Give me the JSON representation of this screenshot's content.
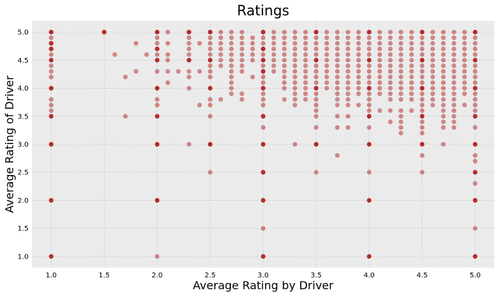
{
  "chart_data": {
    "type": "scatter",
    "title": "Ratings",
    "xlabel": "Average Rating by Driver",
    "ylabel": "Average Rating of Driver",
    "xlim": [
      0.82,
      5.18
    ],
    "ylim": [
      0.8,
      5.2
    ],
    "xticks": [
      "1.0",
      "1.5",
      "2.0",
      "2.5",
      "3.0",
      "3.5",
      "4.0",
      "4.5",
      "5.0"
    ],
    "yticks": [
      "1.0",
      "1.5",
      "2.0",
      "2.5",
      "3.0",
      "3.5",
      "4.0",
      "4.5",
      "5.0"
    ],
    "grid": true,
    "style": "ggplot-like gray background",
    "colors": {
      "point": "#b22222",
      "background": "#ebebeb",
      "grid": "#c8c8c8"
    },
    "columns": [
      {
        "x": 1.0,
        "y": [
          1.0,
          2.0,
          3.0,
          3.5,
          3.6,
          3.7,
          3.8,
          4.0,
          4.2,
          4.3,
          4.4,
          4.5,
          4.6,
          4.7,
          4.8,
          4.9,
          5.0
        ]
      },
      {
        "x": 1.5,
        "y": [
          5.0
        ]
      },
      {
        "x": 1.6,
        "y": [
          4.6
        ]
      },
      {
        "x": 1.7,
        "y": [
          3.5,
          4.2
        ]
      },
      {
        "x": 1.8,
        "y": [
          4.3,
          4.8
        ]
      },
      {
        "x": 1.9,
        "y": [
          4.6
        ]
      },
      {
        "x": 2.0,
        "y": [
          1.0,
          2.0,
          3.0,
          3.5,
          3.7,
          3.8,
          4.0,
          4.3,
          4.5,
          4.6,
          4.7,
          4.8,
          4.9,
          5.0
        ]
      },
      {
        "x": 2.1,
        "y": [
          4.1,
          4.3,
          4.5,
          4.6,
          4.8,
          5.0
        ]
      },
      {
        "x": 2.2,
        "y": [
          4.3
        ]
      },
      {
        "x": 2.3,
        "y": [
          3.0,
          4.0,
          4.2,
          4.3,
          4.5,
          4.6,
          4.7,
          4.8,
          4.9,
          5.0
        ]
      },
      {
        "x": 2.4,
        "y": [
          3.7,
          4.3,
          4.8
        ]
      },
      {
        "x": 2.5,
        "y": [
          2.5,
          3.0,
          3.5,
          3.7,
          3.8,
          4.0,
          4.2,
          4.3,
          4.4,
          4.5,
          4.6,
          4.7,
          4.8,
          4.9,
          5.0
        ]
      },
      {
        "x": 2.6,
        "y": [
          3.8,
          4.4,
          4.5,
          4.6,
          4.7,
          4.8,
          4.9,
          5.0
        ]
      },
      {
        "x": 2.7,
        "y": [
          3.9,
          4.0,
          4.1,
          4.2,
          4.3,
          4.4,
          4.5,
          4.6,
          4.7,
          4.8,
          4.9,
          5.0
        ]
      },
      {
        "x": 2.8,
        "y": [
          3.8,
          3.9,
          4.3,
          4.4,
          4.5,
          4.6,
          4.7,
          4.8,
          4.9,
          5.0
        ]
      },
      {
        "x": 2.9,
        "y": [
          4.2,
          4.5,
          4.6,
          4.7,
          4.8,
          4.9
        ]
      },
      {
        "x": 3.0,
        "y": [
          1.0,
          1.5,
          2.0,
          2.5,
          3.0,
          3.3,
          3.5,
          3.7,
          3.8,
          3.9,
          4.0,
          4.1,
          4.2,
          4.3,
          4.4,
          4.5,
          4.6,
          4.7,
          4.8,
          4.9,
          5.0
        ]
      },
      {
        "x": 3.1,
        "y": [
          4.3,
          4.4,
          4.5,
          4.6,
          4.7,
          4.8,
          4.9,
          5.0
        ]
      },
      {
        "x": 3.2,
        "y": [
          3.8,
          4.0,
          4.1,
          4.2,
          4.3,
          4.4,
          4.5,
          4.6,
          4.7,
          4.8,
          4.9,
          5.0
        ]
      },
      {
        "x": 3.3,
        "y": [
          3.0,
          3.7,
          3.8,
          3.9,
          4.0,
          4.1,
          4.2,
          4.3,
          4.4,
          4.5,
          4.6,
          4.7,
          4.8,
          4.9,
          5.0
        ]
      },
      {
        "x": 3.4,
        "y": [
          3.8,
          3.9,
          4.0,
          4.1,
          4.2,
          4.3,
          4.4,
          4.5,
          4.6,
          4.7,
          4.8,
          4.9,
          5.0
        ]
      },
      {
        "x": 3.5,
        "y": [
          2.5,
          3.0,
          3.3,
          3.5,
          3.6,
          3.7,
          3.8,
          3.9,
          4.0,
          4.1,
          4.2,
          4.3,
          4.4,
          4.5,
          4.6,
          4.7,
          4.8,
          4.9,
          5.0
        ]
      },
      {
        "x": 3.6,
        "y": [
          4.0,
          4.1,
          4.2,
          4.3,
          4.4,
          4.5,
          4.6,
          4.7,
          4.8,
          4.9,
          5.0
        ]
      },
      {
        "x": 3.7,
        "y": [
          2.8,
          3.3,
          3.5,
          3.7,
          3.8,
          3.9,
          4.0,
          4.1,
          4.2,
          4.3,
          4.4,
          4.5,
          4.6,
          4.7,
          4.8,
          4.9,
          5.0
        ]
      },
      {
        "x": 3.8,
        "y": [
          3.3,
          3.5,
          3.7,
          3.8,
          3.9,
          4.0,
          4.1,
          4.2,
          4.3,
          4.4,
          4.5,
          4.6,
          4.7,
          4.8,
          4.9,
          5.0
        ]
      },
      {
        "x": 3.9,
        "y": [
          3.7,
          3.9,
          4.0,
          4.1,
          4.2,
          4.3,
          4.4,
          4.5,
          4.6,
          4.7,
          4.8,
          4.9,
          5.0
        ]
      },
      {
        "x": 4.0,
        "y": [
          1.0,
          2.0,
          2.5,
          3.0,
          3.3,
          3.5,
          3.6,
          3.7,
          3.8,
          3.9,
          4.0,
          4.1,
          4.2,
          4.3,
          4.4,
          4.5,
          4.6,
          4.7,
          4.8,
          4.9,
          5.0
        ]
      },
      {
        "x": 4.1,
        "y": [
          3.6,
          3.9,
          4.0,
          4.1,
          4.2,
          4.3,
          4.4,
          4.5,
          4.6,
          4.7,
          4.8,
          4.9,
          5.0
        ]
      },
      {
        "x": 4.2,
        "y": [
          3.4,
          3.6,
          3.8,
          3.9,
          4.0,
          4.1,
          4.2,
          4.3,
          4.4,
          4.5,
          4.6,
          4.7,
          4.8,
          4.9,
          5.0
        ]
      },
      {
        "x": 4.3,
        "y": [
          3.2,
          3.3,
          3.4,
          3.5,
          3.6,
          3.8,
          3.9,
          4.0,
          4.1,
          4.2,
          4.3,
          4.4,
          4.5,
          4.6,
          4.7,
          4.8,
          4.9,
          5.0
        ]
      },
      {
        "x": 4.4,
        "y": [
          3.6,
          3.8,
          3.9,
          4.0,
          4.1,
          4.2,
          4.3,
          4.4,
          4.5,
          4.6,
          4.7,
          4.8,
          4.9,
          5.0
        ]
      },
      {
        "x": 4.5,
        "y": [
          2.5,
          2.8,
          3.0,
          3.2,
          3.3,
          3.4,
          3.5,
          3.6,
          3.7,
          3.8,
          3.9,
          4.0,
          4.1,
          4.2,
          4.3,
          4.4,
          4.5,
          4.6,
          4.7,
          4.8,
          4.9,
          5.0
        ]
      },
      {
        "x": 4.6,
        "y": [
          3.7,
          3.8,
          3.9,
          4.0,
          4.1,
          4.2,
          4.3,
          4.4,
          4.5,
          4.6,
          4.7,
          4.8,
          4.9,
          5.0
        ]
      },
      {
        "x": 4.7,
        "y": [
          3.0,
          3.3,
          3.4,
          3.5,
          3.6,
          3.7,
          3.8,
          3.9,
          4.0,
          4.1,
          4.2,
          4.3,
          4.4,
          4.5,
          4.6,
          4.7,
          4.8,
          4.9,
          5.0
        ]
      },
      {
        "x": 4.8,
        "y": [
          3.3,
          3.4,
          3.5,
          3.6,
          3.7,
          3.8,
          3.9,
          4.0,
          4.1,
          4.2,
          4.3,
          4.4,
          4.5,
          4.6,
          4.7,
          4.8,
          4.9,
          5.0
        ]
      },
      {
        "x": 4.9,
        "y": [
          3.7,
          3.9,
          4.0,
          4.1,
          4.2,
          4.3,
          4.4,
          4.5,
          4.6,
          4.7,
          4.8,
          4.9,
          5.0
        ]
      },
      {
        "x": 5.0,
        "y": [
          1.0,
          1.5,
          2.0,
          2.3,
          2.5,
          2.7,
          2.8,
          3.0,
          3.3,
          3.5,
          3.6,
          3.7,
          3.8,
          3.9,
          4.0,
          4.1,
          4.2,
          4.3,
          4.4,
          4.5,
          4.6,
          4.7,
          4.8,
          4.9,
          5.0
        ]
      }
    ],
    "strong_points": [
      [
        1.0,
        1.0
      ],
      [
        1.0,
        2.0
      ],
      [
        1.0,
        3.0
      ],
      [
        1.0,
        3.5
      ],
      [
        1.0,
        4.0
      ],
      [
        1.0,
        4.5
      ],
      [
        1.0,
        4.7
      ],
      [
        1.0,
        4.8
      ],
      [
        1.0,
        5.0
      ],
      [
        1.5,
        5.0
      ],
      [
        2.0,
        2.0
      ],
      [
        2.0,
        3.0
      ],
      [
        2.0,
        3.5
      ],
      [
        2.0,
        4.0
      ],
      [
        2.0,
        4.5
      ],
      [
        2.0,
        4.7
      ],
      [
        2.0,
        5.0
      ],
      [
        2.3,
        4.5
      ],
      [
        2.3,
        5.0
      ],
      [
        2.5,
        3.0
      ],
      [
        2.5,
        4.0
      ],
      [
        2.5,
        4.5
      ],
      [
        2.5,
        5.0
      ],
      [
        3.0,
        1.0
      ],
      [
        3.0,
        2.0
      ],
      [
        3.0,
        2.5
      ],
      [
        3.0,
        3.0
      ],
      [
        3.0,
        3.5
      ],
      [
        3.0,
        4.0
      ],
      [
        3.0,
        4.3
      ],
      [
        3.0,
        4.5
      ],
      [
        3.0,
        4.7
      ],
      [
        3.0,
        5.0
      ],
      [
        3.5,
        3.0
      ],
      [
        3.5,
        4.0
      ],
      [
        3.5,
        4.5
      ],
      [
        3.5,
        5.0
      ],
      [
        4.0,
        1.0
      ],
      [
        4.0,
        2.0
      ],
      [
        4.0,
        3.0
      ],
      [
        4.0,
        3.5
      ],
      [
        4.0,
        4.0
      ],
      [
        4.0,
        4.5
      ],
      [
        4.0,
        5.0
      ],
      [
        4.5,
        3.0
      ],
      [
        4.5,
        3.5
      ],
      [
        4.5,
        4.0
      ],
      [
        4.5,
        4.5
      ],
      [
        4.5,
        5.0
      ],
      [
        5.0,
        1.0
      ],
      [
        5.0,
        2.0
      ],
      [
        5.0,
        2.5
      ],
      [
        5.0,
        3.0
      ],
      [
        5.0,
        3.5
      ],
      [
        5.0,
        4.0
      ],
      [
        5.0,
        4.5
      ],
      [
        5.0,
        5.0
      ]
    ]
  }
}
